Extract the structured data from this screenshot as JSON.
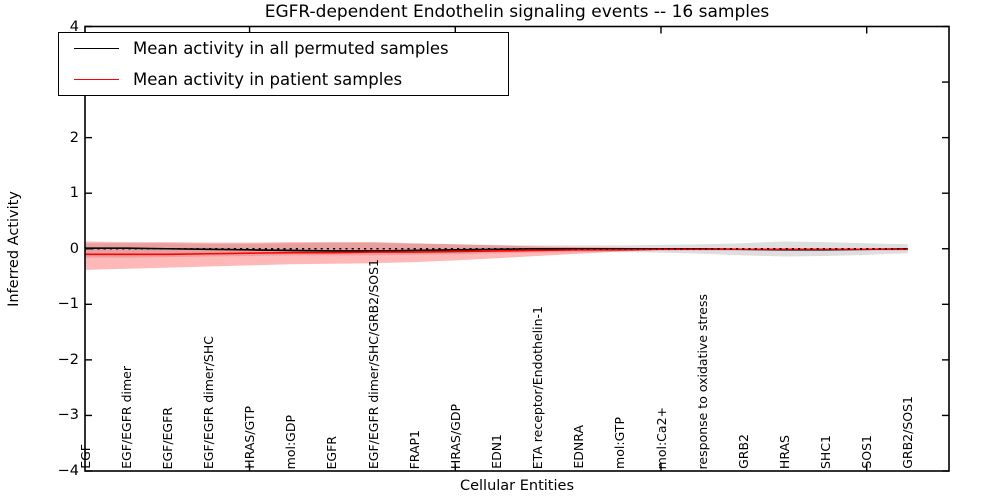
{
  "figure": {
    "title": "EGFR-dependent Endothelin signaling events -- 16 samples",
    "xlabel": "Cellular Entities",
    "ylabel": "Inferred Activity"
  },
  "legend": {
    "position": "upper left",
    "items": [
      {
        "label": "Mean activity in all permuted samples",
        "color": "#000000"
      },
      {
        "label": "Mean activity in patient samples",
        "color": "#ff0000"
      }
    ]
  },
  "chart_data": {
    "type": "line",
    "title": "EGFR-dependent Endothelin signaling events -- 16 samples",
    "xlabel": "Cellular Entities",
    "ylabel": "Inferred Activity",
    "ylim": [
      -4,
      4
    ],
    "yticks": [
      4,
      3,
      2,
      1,
      0,
      -1,
      -2,
      -3,
      -4
    ],
    "xtick_mark_category_indices": [
      4,
      9,
      14,
      19
    ],
    "grid": false,
    "legend_position": "upper left",
    "categories": [
      "EGF",
      "EGF/EGFR dimer",
      "EGF/EGFR",
      "EGF/EGFR dimer/SHC",
      "HRAS/GTP",
      "mol:GDP",
      "EGFR",
      "EGF/EGFR dimer/SHC/GRB2/SOS1",
      "FRAP1",
      "HRAS/GDP",
      "EDN1",
      "ETA receptor/Endothelin-1",
      "EDNRA",
      "mol:GTP",
      "mol:Ca2+",
      "response to oxidative stress",
      "GRB2",
      "HRAS",
      "SHC1",
      "SOS1",
      "GRB2/SOS1"
    ],
    "series": [
      {
        "name": "Mean activity in all permuted samples",
        "color": "#000000",
        "style": "solid",
        "values": [
          0.01,
          0.01,
          0,
          -0.01,
          -0.02,
          -0.03,
          -0.04,
          -0.04,
          -0.03,
          -0.02,
          -0.01,
          0,
          0,
          0,
          0,
          0,
          -0.01,
          -0.02,
          -0.02,
          -0.01,
          0
        ]
      },
      {
        "name": "Mean activity in patient samples",
        "color": "#ff0000",
        "style": "solid",
        "values": [
          -0.1,
          -0.1,
          -0.1,
          -0.09,
          -0.08,
          -0.07,
          -0.07,
          -0.06,
          -0.06,
          -0.05,
          -0.04,
          -0.03,
          -0.02,
          -0.02,
          -0.01,
          -0.01,
          -0.01,
          -0.01,
          -0.01,
          -0.01,
          -0.01
        ]
      },
      {
        "name": "zero reference",
        "color": "#000000",
        "style": "dotted",
        "values": [
          0,
          0,
          0,
          0,
          0,
          0,
          0,
          0,
          0,
          0,
          0,
          0,
          0,
          0,
          0,
          0,
          0,
          0,
          0,
          0,
          0
        ]
      }
    ],
    "bands": [
      {
        "name": "permuted samples spread",
        "color": "rgba(0,0,0,0.13)",
        "upper": [
          0.1,
          0.1,
          0.1,
          0.09,
          0.09,
          0.1,
          0.11,
          0.11,
          0.09,
          0.08,
          0.07,
          0.06,
          0.06,
          0.06,
          0.07,
          0.08,
          0.1,
          0.13,
          0.12,
          0.1,
          0.08
        ],
        "lower": [
          -0.16,
          -0.16,
          -0.15,
          -0.14,
          -0.13,
          -0.12,
          -0.12,
          -0.12,
          -0.11,
          -0.1,
          -0.08,
          -0.07,
          -0.06,
          -0.06,
          -0.07,
          -0.09,
          -0.12,
          -0.14,
          -0.13,
          -0.11,
          -0.08
        ]
      },
      {
        "name": "patient samples spread",
        "color": "rgba(255,0,0,0.28)",
        "upper": [
          0.13,
          0.12,
          0.12,
          0.11,
          0.11,
          0.12,
          0.12,
          0.12,
          0.1,
          0.08,
          0.06,
          0.04,
          0.03,
          0.02,
          0.01,
          0,
          -0.01,
          -0.01,
          -0.01,
          -0.01,
          -0.01
        ],
        "lower": [
          -0.38,
          -0.36,
          -0.34,
          -0.32,
          -0.3,
          -0.28,
          -0.27,
          -0.26,
          -0.24,
          -0.21,
          -0.17,
          -0.13,
          -0.09,
          -0.05,
          -0.02,
          -0.01,
          -0.01,
          -0.01,
          -0.01,
          -0.01,
          -0.01
        ]
      }
    ]
  }
}
